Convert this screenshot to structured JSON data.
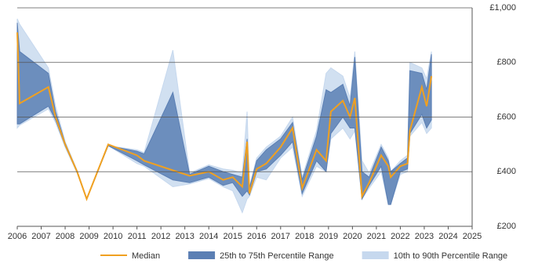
{
  "chart_data": {
    "type": "line",
    "x": [
      2006.0,
      2006.1,
      2007.3,
      2007.6,
      2008.0,
      2008.5,
      2008.9,
      2009.8,
      2011.0,
      2011.3,
      2012.5,
      2013.2,
      2014.0,
      2014.6,
      2015.0,
      2015.4,
      2015.6,
      2015.7,
      2016.0,
      2016.4,
      2017.0,
      2017.5,
      2017.9,
      2018.5,
      2018.9,
      2019.1,
      2019.6,
      2019.9,
      2020.1,
      2020.4,
      2020.7,
      2021.2,
      2021.5,
      2021.6,
      2022.0,
      2022.3,
      2022.4,
      2022.9,
      2023.1,
      2023.3
    ],
    "series": [
      {
        "name": "10th to 90th Percentile Range",
        "color": "#c6d8ee",
        "low": [
          560,
          570,
          630,
          580,
          490,
          395,
          300,
          495,
          430,
          420,
          345,
          355,
          375,
          345,
          330,
          250,
          300,
          310,
          380,
          370,
          450,
          490,
          310,
          420,
          400,
          520,
          560,
          520,
          550,
          300,
          340,
          400,
          280,
          280,
          390,
          400,
          530,
          580,
          540,
          560
        ],
        "high": [
          960,
          940,
          780,
          640,
          510,
          405,
          300,
          495,
          480,
          470,
          845,
          395,
          425,
          410,
          405,
          395,
          620,
          345,
          450,
          490,
          530,
          600,
          380,
          550,
          760,
          780,
          750,
          670,
          840,
          440,
          395,
          500,
          450,
          400,
          440,
          460,
          800,
          780,
          740,
          840
        ]
      },
      {
        "name": "25th to 75th Percentile Range",
        "color": "#5b7fb4",
        "low": [
          575,
          575,
          640,
          590,
          495,
          398,
          300,
          495,
          440,
          425,
          370,
          360,
          380,
          350,
          360,
          310,
          330,
          315,
          400,
          410,
          460,
          510,
          320,
          440,
          400,
          540,
          600,
          560,
          560,
          300,
          350,
          420,
          280,
          280,
          400,
          410,
          540,
          610,
          560,
          590
        ],
        "high": [
          945,
          840,
          760,
          620,
          505,
          402,
          300,
          495,
          475,
          465,
          690,
          390,
          420,
          400,
          390,
          380,
          520,
          340,
          440,
          480,
          520,
          580,
          370,
          530,
          700,
          690,
          720,
          640,
          820,
          400,
          380,
          490,
          440,
          400,
          430,
          450,
          770,
          760,
          700,
          830
        ]
      },
      {
        "name": "Median",
        "color": "#f0a020",
        "values": [
          910,
          650,
          710,
          600,
          500,
          400,
          300,
          500,
          460,
          440,
          405,
          385,
          400,
          370,
          380,
          345,
          510,
          320,
          410,
          430,
          490,
          560,
          340,
          480,
          440,
          620,
          660,
          600,
          670,
          310,
          360,
          460,
          420,
          380,
          420,
          430,
          550,
          710,
          640,
          750
        ]
      }
    ],
    "xlim": [
      2006,
      2025
    ],
    "xticks": [
      2006,
      2007,
      2008,
      2009,
      2010,
      2011,
      2012,
      2013,
      2014,
      2015,
      2016,
      2017,
      2018,
      2019,
      2020,
      2021,
      2022,
      2023,
      2024,
      2025
    ],
    "ylim": [
      200,
      1000
    ],
    "yticks": [
      {
        "value": 200,
        "label": "£200"
      },
      {
        "value": 400,
        "label": "£400"
      },
      {
        "value": 600,
        "label": "£600"
      },
      {
        "value": 800,
        "label": "£800"
      },
      {
        "value": 1000,
        "label": "£1,000"
      }
    ],
    "grid": true
  }
}
